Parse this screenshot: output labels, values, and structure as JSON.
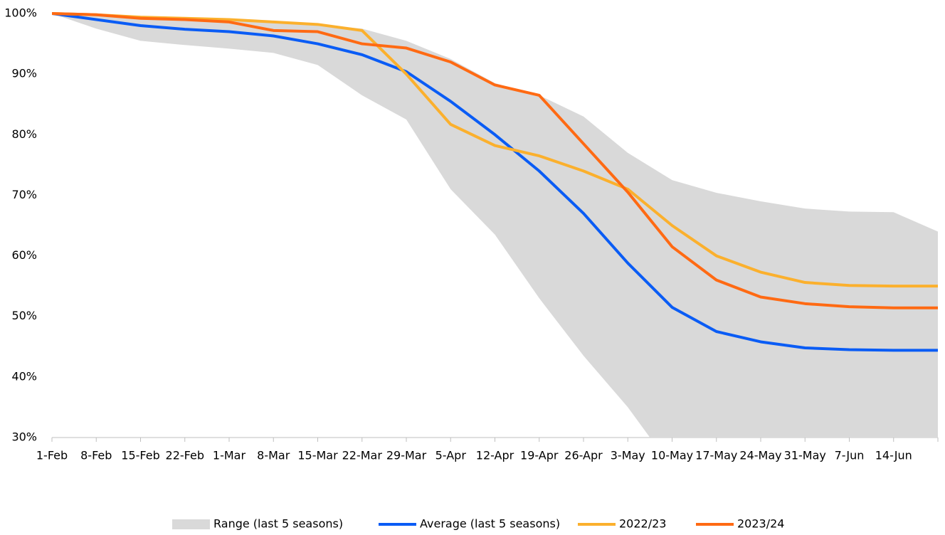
{
  "chart_data": {
    "type": "line",
    "categories": [
      "1-Feb",
      "8-Feb",
      "15-Feb",
      "22-Feb",
      "1-Mar",
      "8-Mar",
      "15-Mar",
      "22-Mar",
      "29-Mar",
      "5-Apr",
      "12-Apr",
      "19-Apr",
      "26-Apr",
      "3-May",
      "10-May",
      "17-May",
      "24-May",
      "31-May",
      "7-Jun",
      "14-Jun",
      null
    ],
    "ylim": [
      30,
      100
    ],
    "yticks": [
      {
        "value": 30,
        "label": "30%"
      },
      {
        "value": 40,
        "label": "40%"
      },
      {
        "value": 50,
        "label": "50%"
      },
      {
        "value": 60,
        "label": "60%"
      },
      {
        "value": 70,
        "label": "70%"
      },
      {
        "value": 80,
        "label": "80%"
      },
      {
        "value": 90,
        "label": "90%"
      },
      {
        "value": 100,
        "label": "100%"
      }
    ],
    "grid": false,
    "legend": "bottom",
    "series": [
      {
        "name": "Range (last 5 seasons)",
        "color": "#d9d9d9",
        "type": "range",
        "lower": [
          100,
          97.5,
          95.5,
          94.8,
          94.2,
          93.5,
          91.5,
          86.5,
          82.5,
          71,
          63.5,
          53,
          43.5,
          35,
          25,
          22,
          20,
          19,
          18,
          18,
          18
        ],
        "upper": [
          100,
          99.9,
          99.6,
          99.3,
          99,
          98.8,
          98.2,
          97.5,
          95.5,
          92.5,
          88.5,
          86.5,
          83,
          77,
          72.5,
          70.4,
          69,
          67.8,
          67.3,
          67.2,
          64
        ]
      },
      {
        "name": "Average (last 5 seasons)",
        "color": "#0a5cf5",
        "values": [
          100,
          99,
          98,
          97.4,
          97,
          96.3,
          95,
          93.2,
          90.4,
          85.5,
          80,
          74,
          67,
          58.8,
          51.5,
          47.5,
          45.8,
          44.8,
          44.5,
          44.4,
          44.4
        ]
      },
      {
        "name": "2022/23",
        "color": "#fbb02d",
        "values": [
          100,
          99.8,
          99.4,
          99.2,
          99,
          98.6,
          98.2,
          97.2,
          90,
          81.7,
          78.2,
          76.5,
          74,
          71,
          65,
          60,
          57.3,
          55.6,
          55.1,
          55,
          55
        ]
      },
      {
        "name": "2023/24",
        "color": "#ff6a13",
        "values": [
          100,
          99.8,
          99.2,
          99,
          98.6,
          97.2,
          97,
          95,
          94.3,
          92,
          88.2,
          86.5,
          78.5,
          70.5,
          61.5,
          56,
          53.2,
          52.1,
          51.6,
          51.4,
          51.4
        ]
      }
    ]
  }
}
